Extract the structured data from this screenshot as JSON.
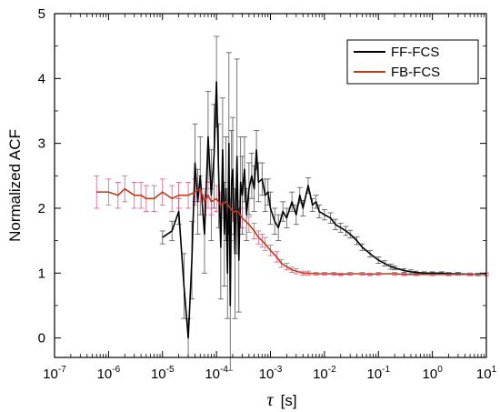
{
  "chart_data": {
    "type": "line",
    "xlabel_symbol": "τ",
    "xlabel_unit": "[s]",
    "ylabel": "Normalized ACF",
    "x_scale": "log",
    "xlim": [
      1e-07,
      10
    ],
    "ylim": [
      -0.3,
      5
    ],
    "x_ticks": [
      {
        "base": "10",
        "exp": "-7",
        "value": 1e-07
      },
      {
        "base": "10",
        "exp": "-6",
        "value": 1e-06
      },
      {
        "base": "10",
        "exp": "-5",
        "value": 1e-05
      },
      {
        "base": "10",
        "exp": "-4",
        "value": 0.0001
      },
      {
        "base": "10",
        "exp": "-3",
        "value": 0.001
      },
      {
        "base": "10",
        "exp": "-2",
        "value": 0.01
      },
      {
        "base": "10",
        "exp": "-1",
        "value": 0.1
      },
      {
        "base": "10",
        "exp": "0",
        "value": 1
      },
      {
        "base": "10",
        "exp": "1",
        "value": 10
      }
    ],
    "y_ticks": [
      {
        "label": "0",
        "value": 0
      },
      {
        "label": "1",
        "value": 1
      },
      {
        "label": "2",
        "value": 2
      },
      {
        "label": "3",
        "value": 3
      },
      {
        "label": "4",
        "value": 4
      },
      {
        "label": "5",
        "value": 5
      }
    ],
    "grid": false,
    "legend_position": "top-right",
    "series": [
      {
        "name": "FF-FCS",
        "color": "#000000",
        "error_color": "#555555",
        "x": [
          1e-05,
          1.5e-05,
          2e-05,
          2.5e-05,
          3e-05,
          3.5e-05,
          4e-05,
          4.5e-05,
          5e-05,
          6e-05,
          7e-05,
          8e-05,
          9e-05,
          0.0001,
          0.00011,
          0.00012,
          0.00013,
          0.00014,
          0.00015,
          0.00016,
          0.00017,
          0.00018,
          0.00019,
          0.0002,
          0.00022,
          0.00024,
          0.00026,
          0.00028,
          0.0003,
          0.00033,
          0.00036,
          0.0004,
          0.00045,
          0.0005,
          0.00055,
          0.0006,
          0.0007,
          0.0008,
          0.0009,
          0.001,
          0.0012,
          0.0014,
          0.0017,
          0.002,
          0.0025,
          0.003,
          0.0035,
          0.004,
          0.005,
          0.006,
          0.007,
          0.008,
          0.01,
          0.013,
          0.016,
          0.02,
          0.025,
          0.03,
          0.04,
          0.05,
          0.07,
          0.1,
          0.13,
          0.17,
          0.2,
          0.3,
          0.4,
          0.5,
          0.7,
          1,
          1.5,
          2,
          3,
          5,
          7,
          10
        ],
        "y": [
          1.55,
          1.65,
          1.95,
          0.8,
          0.0,
          1.2,
          2.7,
          2.1,
          2.5,
          1.6,
          3.1,
          2.2,
          2.8,
          3.95,
          2.5,
          1.4,
          2.9,
          1.6,
          2.3,
          1.0,
          3.0,
          0.5,
          2.4,
          2.6,
          1.3,
          2.8,
          1.2,
          2.4,
          2.2,
          2.6,
          1.9,
          2.3,
          2.5,
          2.3,
          2.9,
          2.4,
          2.45,
          2.2,
          2.25,
          2.0,
          1.8,
          1.7,
          1.95,
          1.85,
          2.1,
          1.9,
          2.2,
          2.0,
          2.35,
          2.05,
          2.1,
          1.95,
          1.9,
          1.85,
          1.75,
          1.7,
          1.65,
          1.6,
          1.5,
          1.4,
          1.3,
          1.2,
          1.15,
          1.1,
          1.08,
          1.04,
          1.02,
          1.01,
          1.0,
          1.0,
          1.0,
          0.99,
          0.99,
          0.98,
          0.98,
          0.98
        ],
        "err": [
          0.1,
          0.15,
          0.2,
          0.5,
          0.3,
          0.6,
          0.6,
          0.5,
          0.6,
          0.6,
          0.7,
          0.7,
          0.8,
          0.7,
          0.8,
          0.8,
          0.8,
          0.8,
          0.8,
          0.7,
          1.4,
          1.0,
          0.8,
          0.8,
          1.0,
          1.5,
          0.8,
          0.7,
          0.6,
          0.5,
          0.4,
          0.4,
          0.35,
          0.35,
          0.3,
          0.3,
          0.25,
          0.25,
          0.2,
          0.25,
          0.2,
          0.2,
          0.15,
          0.15,
          0.15,
          0.15,
          0.12,
          0.12,
          0.12,
          0.1,
          0.1,
          0.1,
          0.08,
          0.08,
          0.08,
          0.07,
          0.07,
          0.06,
          0.06,
          0.05,
          0.05,
          0.05,
          0.04,
          0.04,
          0.03,
          0.03,
          0.03,
          0.02,
          0.02,
          0.02,
          0.02,
          0.02,
          0.02,
          0.02,
          0.02,
          0.02
        ]
      },
      {
        "name": "FB-FCS",
        "color": "#c0391b",
        "error_color": "#e05a8a",
        "x": [
          6e-07,
          1e-06,
          1.5e-06,
          2e-06,
          3e-06,
          4e-06,
          5e-06,
          7e-06,
          1e-05,
          1.5e-05,
          2e-05,
          3e-05,
          4e-05,
          5e-05,
          6e-05,
          7e-05,
          8e-05,
          0.0001,
          0.00012,
          0.00015,
          0.00018,
          0.0002,
          0.00025,
          0.0003,
          0.0004,
          0.0005,
          0.0006,
          0.0007,
          0.0008,
          0.001,
          0.0013,
          0.0016,
          0.002,
          0.0025,
          0.003,
          0.004,
          0.005,
          0.007,
          0.01,
          0.015,
          0.02,
          0.03,
          0.05,
          0.07,
          0.1,
          0.2,
          0.3,
          0.5,
          1,
          2,
          5,
          10
        ],
        "y": [
          2.25,
          2.25,
          2.2,
          2.3,
          2.2,
          2.2,
          2.15,
          2.15,
          2.25,
          2.15,
          2.2,
          2.2,
          2.25,
          2.3,
          2.1,
          2.2,
          2.1,
          2.15,
          2.05,
          2.1,
          2.0,
          1.95,
          1.95,
          1.85,
          1.75,
          1.65,
          1.55,
          1.5,
          1.45,
          1.35,
          1.25,
          1.15,
          1.1,
          1.05,
          1.03,
          1.0,
          1.0,
          0.99,
          0.99,
          0.99,
          0.98,
          0.99,
          0.99,
          0.98,
          0.99,
          0.99,
          0.98,
          0.98,
          0.98,
          0.98,
          0.98,
          0.98
        ],
        "err": [
          0.25,
          0.2,
          0.2,
          0.2,
          0.2,
          0.2,
          0.2,
          0.2,
          0.2,
          0.2,
          0.2,
          0.2,
          0.2,
          0.2,
          0.2,
          0.2,
          0.2,
          0.2,
          0.2,
          0.2,
          0.15,
          0.15,
          0.15,
          0.15,
          0.12,
          0.12,
          0.1,
          0.1,
          0.1,
          0.08,
          0.08,
          0.06,
          0.05,
          0.04,
          0.04,
          0.03,
          0.03,
          0.02,
          0.02,
          0.02,
          0.02,
          0.02,
          0.02,
          0.02,
          0.02,
          0.02,
          0.02,
          0.02,
          0.02,
          0.02,
          0.02,
          0.02
        ]
      }
    ]
  }
}
